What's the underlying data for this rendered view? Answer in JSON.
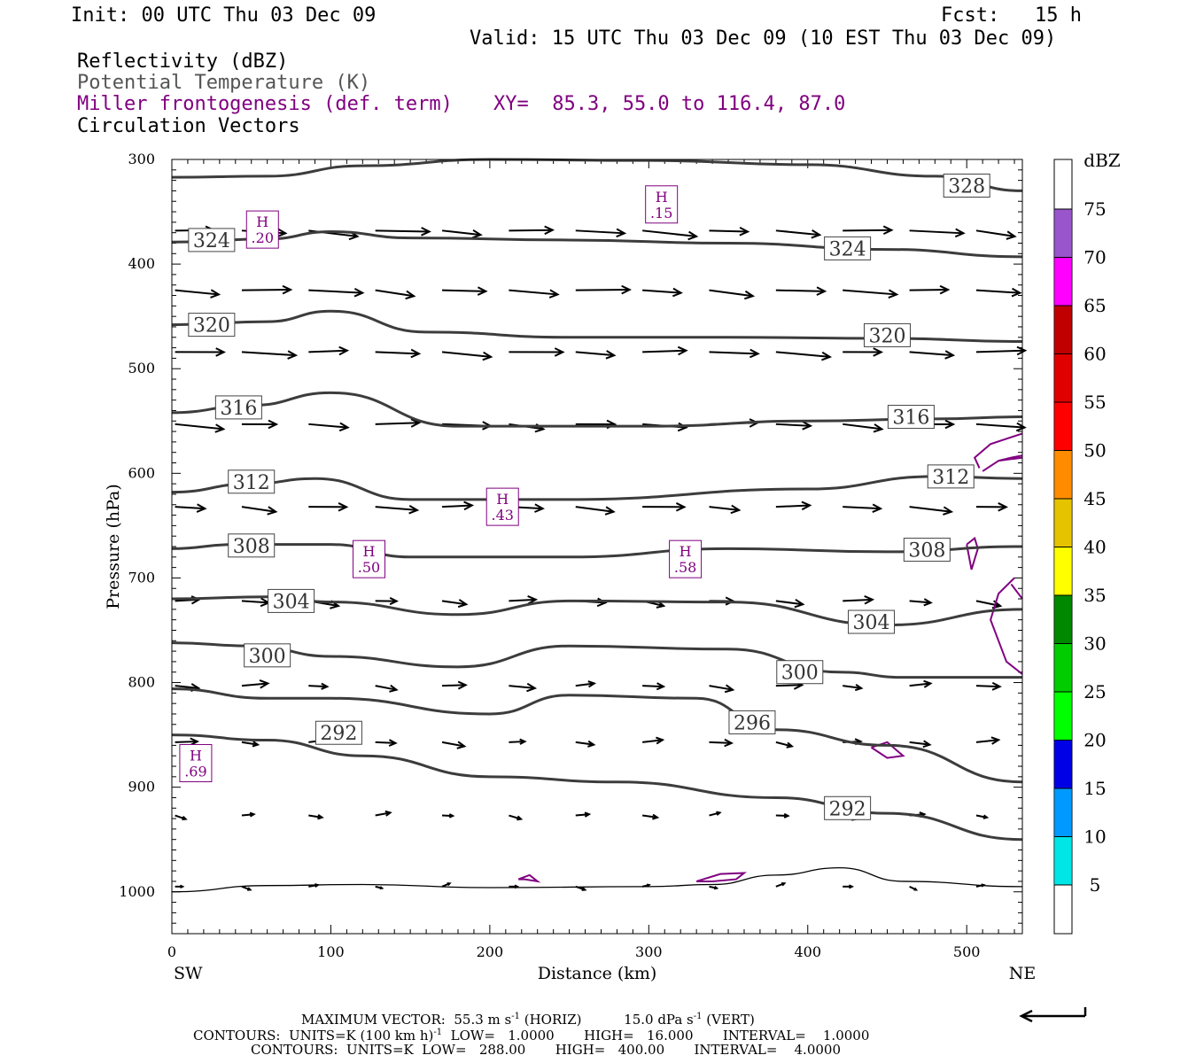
{
  "header": {
    "init": "Init: 00 UTC Thu 03 Dec 09",
    "fcst": "Fcst:   15 h",
    "valid": "Valid: 15 UTC Thu 03 Dec 09 (10 EST Thu 03 Dec 09)",
    "field1": "Reflectivity (dBZ)",
    "field2": "Potential Temperature (K)",
    "field3": "Miller frontogenesis (def. term)",
    "xy": "XY=  85.3, 55.0 to 116.4, 87.0",
    "field4": "Circulation Vectors"
  },
  "colors": {
    "theta": "#3c3c3c",
    "fronto": "#800080",
    "vectors": "#000000"
  },
  "chart_data": {
    "type": "line",
    "xlabel": "Distance (km)",
    "ylabel": "Pressure (hPa)",
    "xlim": [
      0,
      535
    ],
    "ylim": [
      1040,
      300
    ],
    "x_ticks": [
      0,
      100,
      200,
      300,
      400,
      500
    ],
    "y_ticks": [
      300,
      400,
      500,
      600,
      700,
      800,
      900,
      1000
    ],
    "x_end_labels": {
      "left": "SW",
      "right": "NE"
    },
    "theta_contours": [
      {
        "label": "328",
        "points": [
          [
            0,
            317
          ],
          [
            60,
            316
          ],
          [
            120,
            306
          ],
          [
            200,
            300
          ],
          [
            300,
            301
          ],
          [
            400,
            305
          ],
          [
            480,
            316
          ],
          [
            535,
            330
          ]
        ],
        "labels_at": [
          [
            500,
            325
          ]
        ]
      },
      {
        "label": "324",
        "points": [
          [
            0,
            379
          ],
          [
            60,
            376
          ],
          [
            100,
            369
          ],
          [
            150,
            375
          ],
          [
            250,
            377
          ],
          [
            350,
            380
          ],
          [
            450,
            386
          ],
          [
            535,
            393
          ]
        ],
        "labels_at": [
          [
            25,
            377
          ],
          [
            425,
            385
          ]
        ]
      },
      {
        "label": "320",
        "points": [
          [
            0,
            458
          ],
          [
            60,
            455
          ],
          [
            100,
            445
          ],
          [
            160,
            465
          ],
          [
            250,
            470
          ],
          [
            350,
            470
          ],
          [
            450,
            471
          ],
          [
            535,
            474
          ]
        ],
        "labels_at": [
          [
            25,
            458
          ],
          [
            450,
            468
          ]
        ]
      },
      {
        "label": "316",
        "points": [
          [
            0,
            542
          ],
          [
            50,
            535
          ],
          [
            100,
            523
          ],
          [
            180,
            555
          ],
          [
            300,
            555
          ],
          [
            400,
            550
          ],
          [
            480,
            548
          ],
          [
            535,
            546
          ]
        ],
        "labels_at": [
          [
            42,
            537
          ],
          [
            465,
            546
          ]
        ]
      },
      {
        "label": "312",
        "points": [
          [
            0,
            618
          ],
          [
            50,
            610
          ],
          [
            90,
            605
          ],
          [
            150,
            625
          ],
          [
            250,
            625
          ],
          [
            400,
            615
          ],
          [
            480,
            603
          ],
          [
            535,
            605
          ]
        ],
        "labels_at": [
          [
            50,
            608
          ],
          [
            490,
            603
          ]
        ]
      },
      {
        "label": "308",
        "points": [
          [
            0,
            672
          ],
          [
            40,
            668
          ],
          [
            100,
            668
          ],
          [
            150,
            680
          ],
          [
            250,
            680
          ],
          [
            350,
            672
          ],
          [
            450,
            675
          ],
          [
            535,
            670
          ]
        ],
        "labels_at": [
          [
            50,
            669
          ],
          [
            475,
            673
          ]
        ]
      },
      {
        "label": "304",
        "points": [
          [
            0,
            720
          ],
          [
            60,
            718
          ],
          [
            100,
            723
          ],
          [
            180,
            735
          ],
          [
            250,
            722
          ],
          [
            350,
            723
          ],
          [
            450,
            745
          ],
          [
            535,
            730
          ]
        ],
        "labels_at": [
          [
            75,
            722
          ],
          [
            440,
            742
          ]
        ]
      },
      {
        "label": "300",
        "points": [
          [
            0,
            762
          ],
          [
            50,
            765
          ],
          [
            100,
            775
          ],
          [
            180,
            785
          ],
          [
            250,
            765
          ],
          [
            350,
            768
          ],
          [
            420,
            790
          ],
          [
            460,
            795
          ],
          [
            535,
            795
          ]
        ],
        "labels_at": [
          [
            60,
            774
          ],
          [
            395,
            790
          ]
        ]
      },
      {
        "label": "296",
        "points": [
          [
            0,
            806
          ],
          [
            60,
            815
          ],
          [
            100,
            815
          ],
          [
            200,
            830
          ],
          [
            250,
            812
          ],
          [
            330,
            815
          ],
          [
            380,
            845
          ],
          [
            450,
            860
          ],
          [
            535,
            895
          ]
        ],
        "labels_at": [
          [
            365,
            838
          ]
        ]
      },
      {
        "label": "292",
        "points": [
          [
            0,
            850
          ],
          [
            60,
            855
          ],
          [
            120,
            870
          ],
          [
            200,
            890
          ],
          [
            280,
            895
          ],
          [
            380,
            910
          ],
          [
            450,
            925
          ],
          [
            535,
            950
          ]
        ],
        "labels_at": [
          [
            105,
            848
          ],
          [
            425,
            920
          ]
        ]
      },
      {
        "label": "",
        "points": [
          [
            0,
            1000
          ],
          [
            60,
            994
          ],
          [
            120,
            993
          ],
          [
            200,
            996
          ],
          [
            300,
            995
          ],
          [
            340,
            993
          ],
          [
            380,
            984
          ],
          [
            420,
            977
          ],
          [
            460,
            990
          ],
          [
            535,
            995
          ]
        ],
        "labels_at": []
      }
    ],
    "fronto_maxima": [
      {
        "label": "H",
        "value": ".69",
        "x": 15,
        "p": 877
      },
      {
        "label": "H",
        "value": ".20",
        "x": 57,
        "p": 367
      },
      {
        "label": "H",
        "value": ".15",
        "x": 308,
        "p": 343
      },
      {
        "label": "H",
        "value": ".43",
        "x": 208,
        "p": 632
      },
      {
        "label": "H",
        "value": ".50",
        "x": 124,
        "p": 682
      },
      {
        "label": "H",
        "value": ".58",
        "x": 323,
        "p": 682
      }
    ],
    "colorbar": {
      "title": "dBZ",
      "labels": [
        "5",
        "10",
        "15",
        "20",
        "25",
        "30",
        "35",
        "40",
        "45",
        "50",
        "55",
        "60",
        "65",
        "70",
        "75"
      ],
      "colors": [
        "#00e6e6",
        "#0099ff",
        "#0000e6",
        "#00ff00",
        "#00cc00",
        "#008800",
        "#ffff00",
        "#e6c300",
        "#ff8c00",
        "#ff0000",
        "#e00000",
        "#c00000",
        "#ff00ff",
        "#9955cc"
      ]
    }
  },
  "footer": {
    "line1_a": "MAXIMUM VECTOR:  55.3 m s",
    "line1_b": " (HORIZ)          15.0 dPa s",
    "line1_c": " (VERT)",
    "sup_m1": "-1",
    "line2_a": "CONTOURS:  UNITS=K (100 km h)",
    "line2_b": "  LOW=   1.0000       HIGH=   16.000       INTERVAL=    1.0000",
    "line3": "CONTOURS:  UNITS=K  LOW=   288.00       HIGH=   400.00       INTERVAL=    4.0000"
  }
}
